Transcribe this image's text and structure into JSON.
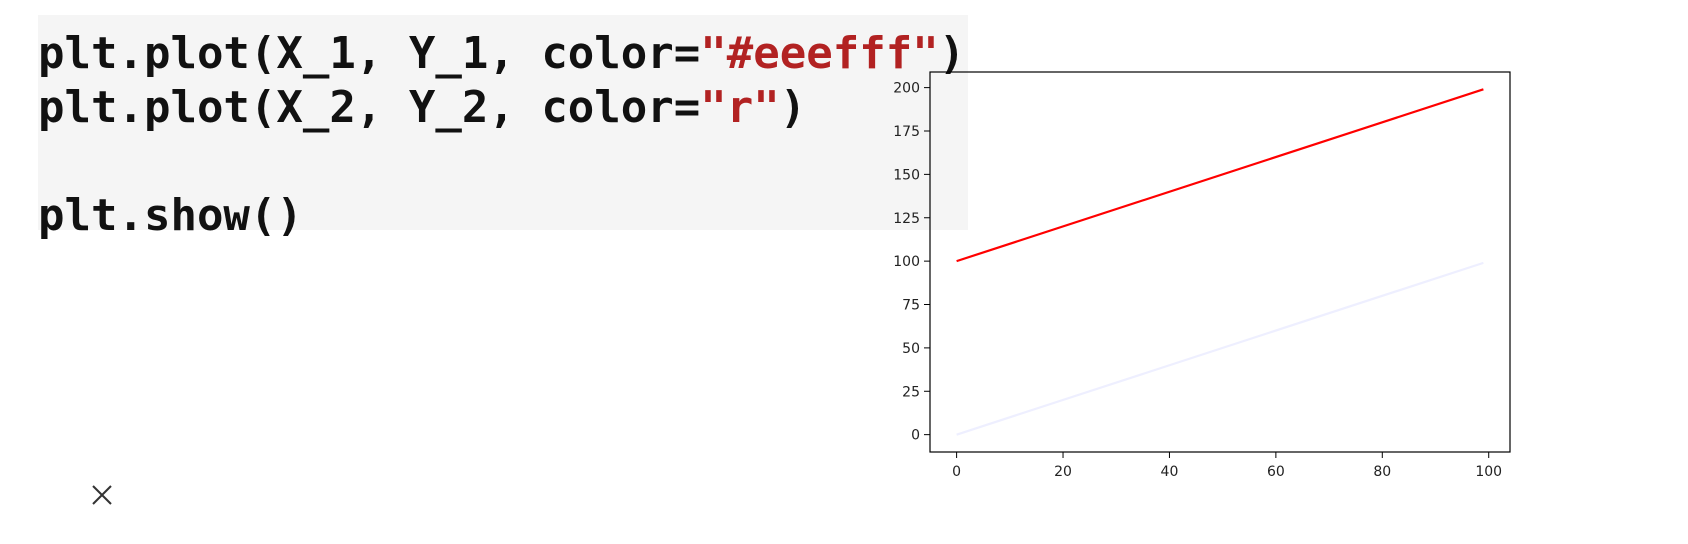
{
  "code": {
    "line1": {
      "pre": "plt.plot(X_1, Y_1, color=",
      "str": "\"#eeefff\"",
      "post": ")"
    },
    "line2": {
      "pre": "plt.plot(X_2, Y_2, color=",
      "str": "\"r\"",
      "post": ")"
    },
    "line3": "",
    "line4": "plt.show()"
  },
  "chart_data": {
    "type": "line",
    "x": [
      0,
      99
    ],
    "series": [
      {
        "values": [
          0,
          99
        ],
        "color": "#eeefff"
      },
      {
        "values": [
          100,
          199
        ],
        "color": "#ff0000"
      }
    ],
    "xticks": [
      0,
      20,
      40,
      60,
      80,
      100
    ],
    "yticks": [
      0,
      25,
      50,
      75,
      100,
      125,
      150,
      175,
      200
    ],
    "xlim": [
      -5,
      104
    ],
    "ylim": [
      -10,
      209
    ],
    "grid": false
  },
  "close_icon": "close-icon"
}
